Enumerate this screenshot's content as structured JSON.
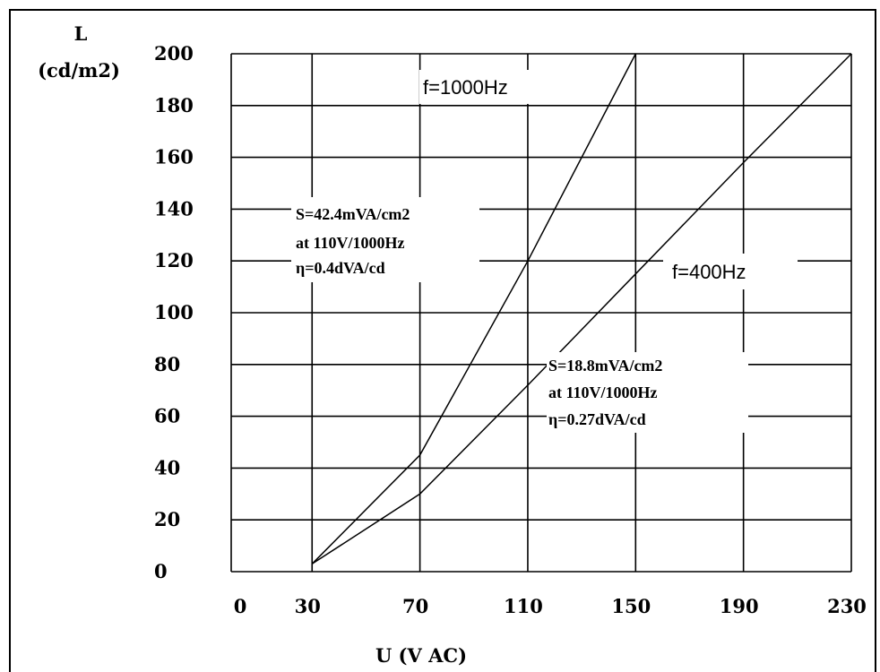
{
  "chart_data": {
    "type": "line",
    "xlabel": "U (V AC)",
    "ylabel": [
      "L",
      "(cd/m2)"
    ],
    "x_ticks": [
      "0",
      "30",
      "70",
      "110",
      "150",
      "190",
      "230"
    ],
    "y_ticks": [
      "200",
      "180",
      "160",
      "140",
      "120",
      "100",
      "80",
      "60",
      "40",
      "20",
      "0"
    ],
    "xlim": [
      0,
      230
    ],
    "ylim": [
      0,
      200
    ],
    "grid": true,
    "series": [
      {
        "name": "f=1000Hz",
        "color": "#000000",
        "points": [
          [
            30,
            3
          ],
          [
            70,
            45
          ],
          [
            110,
            120
          ],
          [
            150,
            200
          ]
        ]
      },
      {
        "name": "f=400Hz",
        "color": "#000000",
        "points": [
          [
            30,
            3
          ],
          [
            70,
            30
          ],
          [
            110,
            72
          ],
          [
            150,
            115
          ],
          [
            190,
            158
          ],
          [
            230,
            200
          ]
        ]
      }
    ],
    "annotations": [
      {
        "lines": [
          "S=42.4mVA/cm2",
          "at 110V/1000Hz",
          "η=0.4dVA/cd"
        ]
      },
      {
        "lines": [
          "S=18.8mVA/cm2",
          "at 110V/1000Hz",
          "η=0.27dVA/cd"
        ]
      }
    ]
  }
}
